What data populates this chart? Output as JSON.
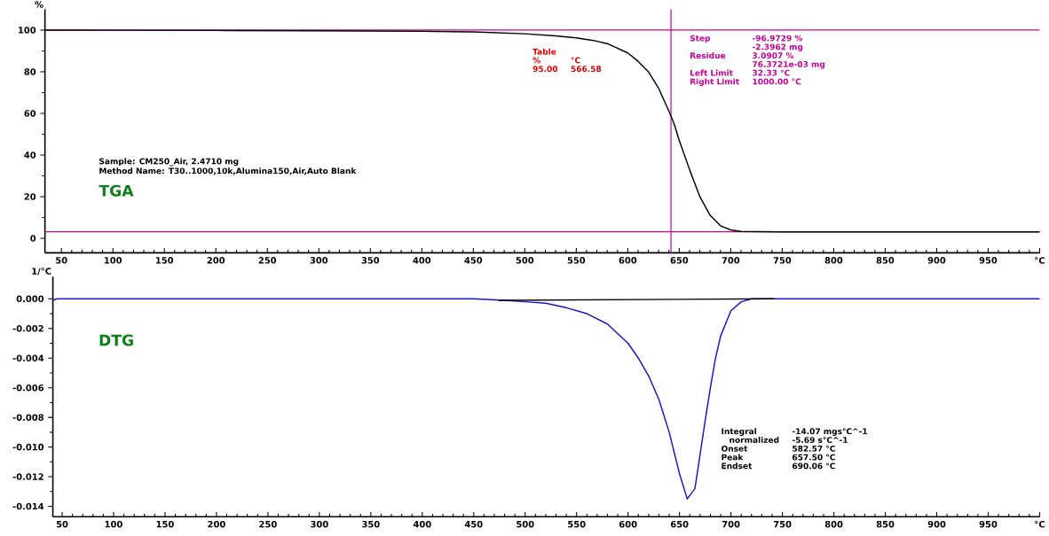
{
  "chart_data": [
    {
      "type": "line",
      "ylabel": "%",
      "xlim": [
        34,
        1000
      ],
      "ylim": [
        -7,
        110
      ],
      "xticks": [
        50,
        100,
        150,
        200,
        250,
        300,
        350,
        400,
        450,
        500,
        550,
        600,
        650,
        700,
        750,
        800,
        850,
        900,
        950,
        {
          "value": 1000,
          "label": "°C"
        }
      ],
      "yticks": [
        0,
        20,
        40,
        60,
        80,
        100
      ],
      "series": [
        {
          "color": "#000000",
          "x": [
            34,
            100,
            200,
            300,
            400,
            450,
            500,
            530,
            550,
            566.58,
            580,
            600,
            610,
            620,
            630,
            640,
            645,
            650,
            660,
            670,
            680,
            690,
            700,
            710,
            750,
            800,
            900,
            1000
          ],
          "values": [
            100,
            99.9,
            99.8,
            99.6,
            99.4,
            99.1,
            98.2,
            97.2,
            96.2,
            95,
            93.5,
            89,
            85,
            80,
            72,
            61,
            55,
            47,
            33,
            20,
            11,
            6,
            4,
            3.3,
            3.1,
            3.1,
            3.1,
            3.1
          ]
        }
      ],
      "ref_lines": [
        {
          "axis": "y",
          "value": 100,
          "color": "#cc0099"
        },
        {
          "axis": "y",
          "value": 3.09,
          "color": "#cc0099"
        },
        {
          "axis": "x",
          "value": 642,
          "color": "#cc0099"
        }
      ],
      "annotations": [
        "Sample: CM250_Air, 2.4710 mg",
        "Method Name: T30..1000,10k,Alumina150,Air,Auto Blank",
        "TGA",
        "Table",
        "%",
        "°C",
        "95.00",
        "566.58",
        "Step",
        "-96.9729 %",
        "-2.3962 mg",
        "Residue",
        "3.0907 %",
        "76.3721e-03 mg",
        "Left Limit",
        "32.33 °C",
        "Right Limit",
        "1000.00 °C"
      ]
    },
    {
      "type": "line",
      "ylabel": "1/°C",
      "xlim": [
        41,
        1000
      ],
      "ylim": [
        -0.0147,
        0.0015
      ],
      "xticks": [
        50,
        100,
        150,
        200,
        250,
        300,
        350,
        400,
        450,
        500,
        550,
        600,
        650,
        700,
        750,
        800,
        850,
        900,
        950,
        {
          "value": 1000,
          "label": "°C"
        }
      ],
      "yticks": [
        {
          "value": 0,
          "label": "0.000"
        },
        {
          "value": -0.002,
          "label": "-0.002"
        },
        {
          "value": -0.004,
          "label": "-0.004"
        },
        {
          "value": -0.006,
          "label": "-0.006"
        },
        {
          "value": -0.008,
          "label": "-0.008"
        },
        {
          "value": -0.01,
          "label": "-0.010"
        },
        {
          "value": -0.012,
          "label": "-0.012"
        },
        {
          "value": -0.014,
          "label": "-0.014"
        }
      ],
      "series": [
        {
          "color": "#1414d2",
          "x": [
            41,
            45,
            50,
            100,
            200,
            300,
            400,
            450,
            480,
            500,
            520,
            540,
            560,
            580,
            600,
            610,
            620,
            630,
            640,
            650,
            657.5,
            665,
            670,
            675,
            680,
            685,
            690,
            700,
            710,
            720,
            750,
            800,
            900,
            1000
          ],
          "values": [
            -0.0001,
            0.0,
            0.0,
            0.0,
            0.0,
            0.0,
            0.0,
            0.0,
            -0.0001,
            -0.0002,
            -0.0003,
            -0.0006,
            -0.001,
            -0.0017,
            -0.003,
            -0.004,
            -0.0052,
            -0.0068,
            -0.009,
            -0.0118,
            -0.0135,
            -0.0128,
            -0.0105,
            -0.0082,
            -0.006,
            -0.004,
            -0.0025,
            -0.0008,
            -0.0002,
            0.0,
            0.0,
            0.0,
            0.0,
            0.0
          ]
        },
        {
          "color": "#000000",
          "x": [
            474,
            742
          ],
          "values": [
            -0.0001,
            0.0
          ]
        }
      ],
      "annotations": [
        "DTG",
        "Integral",
        "-14.07 mgs°C^-1",
        "normalized",
        "-5.69 s°C^-1",
        "Onset",
        "582.57 °C",
        "Peak",
        "657.50 °C",
        "Endset",
        "690.06 °C"
      ]
    }
  ]
}
